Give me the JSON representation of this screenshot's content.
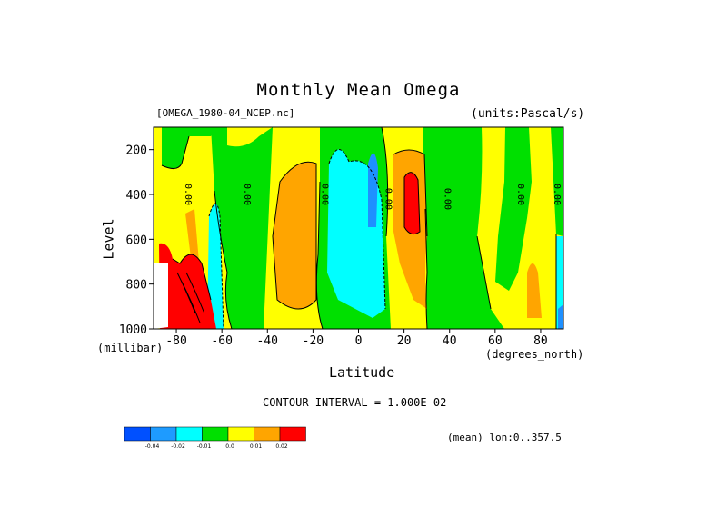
{
  "page": {
    "title": "Monthly Mean Omega",
    "dataset_label": "[OMEGA_1980-04_NCEP.nc]",
    "units_label": "(units:Pascal/s)",
    "contour_interval": "CONTOUR INTERVAL = 1.000E-02",
    "mean_lon": "(mean) lon:0..357.5"
  },
  "chart_data": {
    "type": "heatmap",
    "title": "Monthly Mean Omega",
    "xlabel": "Latitude",
    "x_units": "(degrees_north)",
    "ylabel": "Level",
    "y_units": "(millibar)",
    "xlim": [
      -90,
      90
    ],
    "ylim": [
      1000,
      100
    ],
    "xticks": [
      -80,
      -60,
      -40,
      -20,
      0,
      20,
      40,
      60,
      80
    ],
    "yticks": [
      200,
      400,
      600,
      800,
      1000
    ],
    "contour_labels": [
      {
        "lat": -76,
        "level": 400,
        "text": "0.00"
      },
      {
        "lat": -50,
        "level": 400,
        "text": "0.00"
      },
      {
        "lat": -16,
        "level": 400,
        "text": "0.00"
      },
      {
        "lat": 12,
        "level": 420,
        "text": "0.00"
      },
      {
        "lat": 38,
        "level": 420,
        "text": "0.00"
      },
      {
        "lat": 70,
        "level": 400,
        "text": "0.00"
      },
      {
        "lat": 86,
        "level": 400,
        "text": "0.00"
      }
    ],
    "regions": [
      {
        "value": "<-0.01",
        "lat_lo": -68,
        "lat_hi": -63,
        "p_top": 420,
        "p_bot": 1000,
        "color": "#00ffff"
      },
      {
        "value": "0.01..0.02",
        "lat_lo": -33,
        "lat_hi": -18,
        "p_top": 250,
        "p_bot": 930,
        "color": "#ffa500"
      },
      {
        "value": "-0.02..-0.01",
        "lat_lo": -12,
        "lat_hi": 10,
        "p_top": 160,
        "p_bot": 950,
        "color": "#00ffff"
      },
      {
        "value": "<-0.02",
        "lat_lo": 3,
        "lat_hi": 9,
        "p_top": 230,
        "p_bot": 500,
        "color": "#1e90ff"
      },
      {
        "value": "0.01..0.02",
        "lat_lo": 15,
        "lat_hi": 30,
        "p_top": 150,
        "p_bot": 880,
        "color": "#ffa500"
      },
      {
        "value": ">0.02",
        "lat_lo": 20,
        "lat_hi": 26,
        "p_top": 280,
        "p_bot": 560,
        "color": "#ff0000"
      },
      {
        "value": "0.01..0.02",
        "lat_lo": 70,
        "lat_hi": 76,
        "p_top": 780,
        "p_bot": 950,
        "color": "#ffa500"
      },
      {
        "value": ">0.02",
        "lat_lo": -88,
        "lat_hi": -68,
        "p_top": 620,
        "p_bot": 1000,
        "color": "#ff0000"
      }
    ],
    "colorbar": {
      "labels": [
        "-0.04",
        "-0.02",
        "-0.01",
        "0.0",
        "0.01",
        "0.02"
      ],
      "colors": [
        "#0050ff",
        "#1e9bff",
        "#00ffff",
        "#00e000",
        "#ffff00",
        "#ffa500",
        "#ff0000"
      ]
    }
  }
}
